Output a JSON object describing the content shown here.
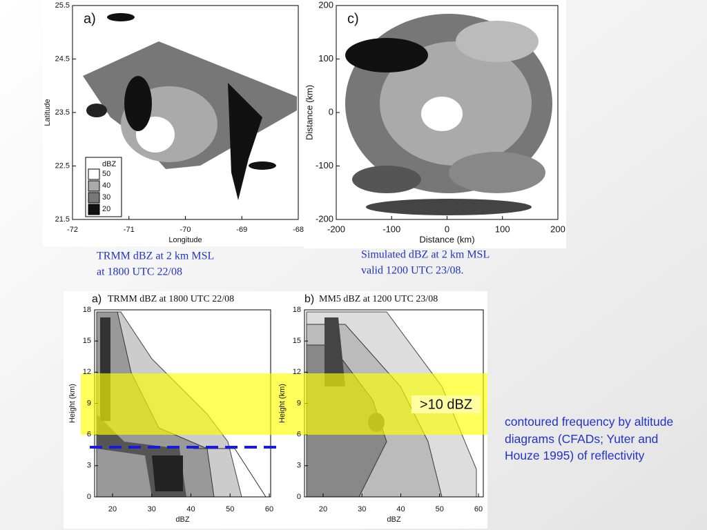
{
  "maps": [
    {
      "label": "a)",
      "x_label": "Longitude",
      "y_label": "Latitude",
      "xticks": [
        "-72",
        "-71",
        "-70",
        "-69",
        "-68"
      ],
      "yticks": [
        "25.5",
        "24.5",
        "23.5",
        "22.5",
        "21.5"
      ],
      "legend": {
        "title": "dBZ",
        "items": [
          "50",
          "40",
          "30",
          "20"
        ]
      },
      "caption": [
        "TRMM dBZ at 2 km MSL",
        "at 1800 UTC 22/08"
      ]
    },
    {
      "label": "c)",
      "x_label": "Distance (km)",
      "y_label": "Distance (km)",
      "xticks": [
        "-200",
        "-100",
        "0",
        "100",
        "200"
      ],
      "yticks": [
        "200",
        "100",
        "0",
        "-100",
        "-200"
      ],
      "caption": [
        "Simulated dBZ at 2 km MSL",
        "valid 1200 UTC 23/08."
      ]
    }
  ],
  "cfads": [
    {
      "label": "a)",
      "title": "TRMM dBZ at 1800 UTC 22/08",
      "y_label": "Height (km)",
      "x_label": "dBZ",
      "yticks": [
        "18",
        "15",
        "12",
        "9",
        "6",
        "3",
        "0"
      ],
      "xticks": [
        "20",
        "30",
        "40",
        "50",
        "60"
      ]
    },
    {
      "label": "b)",
      "title": "MM5 dBZ at 1200 UTC 23/08",
      "y_label": "Height (km)",
      "x_label": "dBZ",
      "yticks": [
        "18",
        "15",
        "12",
        "9",
        "6",
        "3",
        "0"
      ],
      "xticks": [
        "20",
        "30",
        "40",
        "50",
        "60"
      ]
    }
  ],
  "highlight_label": ">10 dBZ",
  "note": "contoured frequency by altitude diagrams (CFADs; Yuter and Houze 1995) of reflectivity"
}
